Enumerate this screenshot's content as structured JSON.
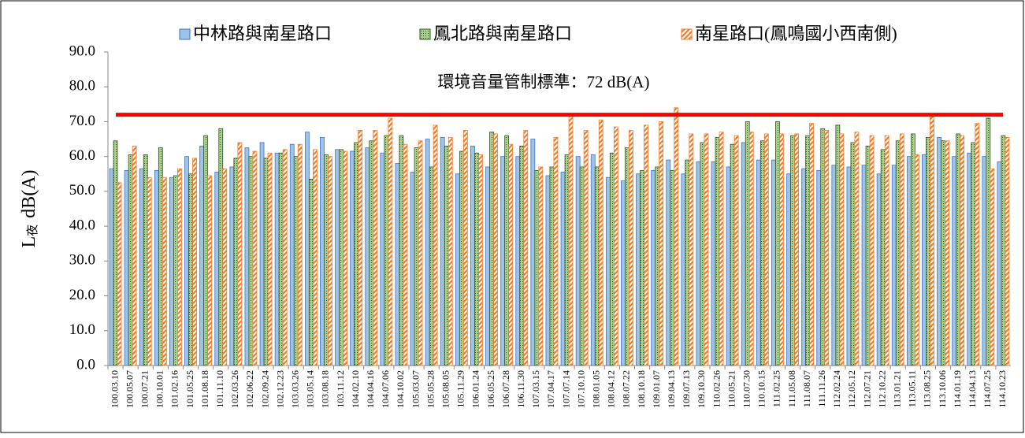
{
  "chart_data": {
    "type": "bar",
    "y_label": {
      "main": "L",
      "sub": "夜",
      "unit": "dB(A)"
    },
    "categories": [
      "100.03.10",
      "100.05.07",
      "100.07.21",
      "100.10.01",
      "101.02.16",
      "101.05.25",
      "101.08.18",
      "101.11.10",
      "102.03.26",
      "102.06.22",
      "102.09.24",
      "102.12.23",
      "103.03.26",
      "103.05.14",
      "103.08.18",
      "103.11.12",
      "104.02.10",
      "104.04.16",
      "104.07.06",
      "104.10.02",
      "105.03.07",
      "105.05.28",
      "105.08.05",
      "105.11.29",
      "106.01.24",
      "106.05.25",
      "106.07.28",
      "106.11.30",
      "107.03.15",
      "107.04.17",
      "107.07.14",
      "107.10.10",
      "108.01.05",
      "108.04.12",
      "108.07.22",
      "108.10.18",
      "109.01.07",
      "109.04.13",
      "109.07.13",
      "109.10.30",
      "110.02.26",
      "110.05.21",
      "110.07.30",
      "110.10.15",
      "111.02.25",
      "111.05.08",
      "111.08.07",
      "111.11.26",
      "112.02.24",
      "112.05.12",
      "112.07.21",
      "112.10.22",
      "113.01.21",
      "113.05.11",
      "113.08.25",
      "113.10.06",
      "114.01.19",
      "114.04.13",
      "114.07.25",
      "114.10.23"
    ],
    "series": [
      {
        "name": "中林路與南星路口",
        "color": "#9dc3e6",
        "edge_color": "#4472c4",
        "pattern": "solid",
        "values": [
          56.5,
          56,
          56.5,
          56,
          54,
          60,
          63,
          55.5,
          57,
          62.5,
          64,
          61,
          63.5,
          67,
          65.5,
          62,
          61.5,
          62.5,
          61,
          58,
          55.5,
          65,
          65.5,
          55,
          63,
          57,
          60,
          60,
          65,
          54.5,
          55.5,
          60,
          60.5,
          54,
          53,
          55,
          56,
          59,
          55,
          58.5,
          58.5,
          57,
          64,
          59,
          59,
          55,
          56.5,
          56,
          57.5,
          57,
          57.5,
          55,
          57.5,
          60,
          60.5,
          65.5,
          60,
          61,
          60,
          58.5
        ]
      },
      {
        "name": "鳳北路與南星路口",
        "color": "#a9d18e",
        "edge_color": "#375623",
        "pattern": "dots",
        "values": [
          64.5,
          60.5,
          60.5,
          62.5,
          54.5,
          55,
          66,
          68,
          59.5,
          60,
          59.5,
          61,
          60,
          53.5,
          60.5,
          62,
          64,
          64.5,
          66,
          66,
          62.5,
          57,
          63,
          61.5,
          61,
          67,
          66,
          63,
          56,
          57,
          60.5,
          57,
          57,
          61,
          62.5,
          56,
          57,
          56,
          59,
          64,
          65.5,
          63.5,
          70,
          64.5,
          70,
          66,
          66,
          68,
          69,
          64,
          63,
          62,
          64.5,
          66.5,
          65.5,
          64.5,
          66.5,
          64,
          71,
          66
        ]
      },
      {
        "name": "南星路口(鳳鳴國小西南側)",
        "color": "#f4b183",
        "edge_color": "#ed7d31",
        "pattern": "stripes",
        "values": [
          52.5,
          63,
          54,
          54,
          56.5,
          59.5,
          54.5,
          56.5,
          64,
          61.5,
          61,
          62,
          63.5,
          62,
          60,
          61.5,
          67.5,
          67.5,
          71,
          63.5,
          64.5,
          69,
          65.5,
          67.5,
          60.5,
          66.5,
          63.5,
          67.5,
          57,
          65.5,
          72,
          67.5,
          70.5,
          68.5,
          67.5,
          69,
          70,
          74,
          66.5,
          66.5,
          67,
          66,
          67,
          66.5,
          66.5,
          66.5,
          69.5,
          67.5,
          66.5,
          67,
          66,
          66,
          66.5,
          60.5,
          72,
          64.5,
          66,
          69.5,
          56.5,
          65.5
        ]
      }
    ],
    "threshold": {
      "value": 72,
      "label": "環境音量管制標準：72 dB(A)",
      "color": "#ff0000"
    },
    "ylim": [
      0,
      90
    ],
    "yticks": [
      {
        "value": 0,
        "label": "0.0"
      },
      {
        "value": 10,
        "label": "10.0"
      },
      {
        "value": 20,
        "label": "20.0"
      },
      {
        "value": 30,
        "label": "30.0"
      },
      {
        "value": 40,
        "label": "40.0"
      },
      {
        "value": 50,
        "label": "50.0"
      },
      {
        "value": 60,
        "label": "60.0"
      },
      {
        "value": 70,
        "label": "70.0"
      },
      {
        "value": 80,
        "label": "80.0"
      },
      {
        "value": 90,
        "label": "90.0"
      }
    ],
    "legend": "top"
  }
}
